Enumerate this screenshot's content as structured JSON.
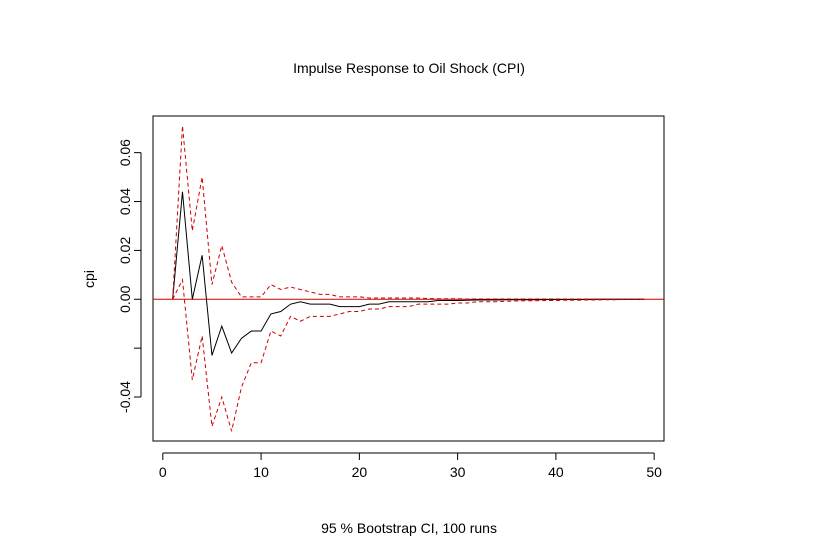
{
  "chart_data": {
    "type": "line",
    "title": "Impulse Response to Oil Shock (CPI)",
    "xlabel": "95 % Bootstrap CI,  100 runs",
    "ylabel": "cpi",
    "xlim": [
      -1,
      51
    ],
    "ylim": [
      -0.058,
      0.075
    ],
    "x_ticks": [
      "0",
      "10",
      "20",
      "30",
      "40",
      "50"
    ],
    "x_tick_values": [
      0,
      10,
      20,
      30,
      40,
      50
    ],
    "y_ticks": [
      "0.00",
      "0.02",
      "0.04",
      "0.06",
      "-0.04"
    ],
    "y_tick_values": [
      0.0,
      0.02,
      0.04,
      0.06,
      -0.04
    ],
    "y_minor_ticks": [
      -0.02
    ],
    "grid": false,
    "reference_line": {
      "y": 0,
      "color": "#cc0000"
    },
    "x": [
      1,
      2,
      3,
      4,
      5,
      6,
      7,
      8,
      9,
      10,
      11,
      12,
      13,
      14,
      15,
      16,
      17,
      18,
      19,
      20,
      21,
      22,
      23,
      24,
      25,
      26,
      27,
      28,
      29,
      30,
      31,
      32,
      33,
      34,
      35,
      36,
      37,
      38,
      39,
      40,
      41,
      42,
      43,
      44,
      45,
      46,
      47,
      48,
      49
    ],
    "series": [
      {
        "color": "#000000",
        "style": "solid",
        "values": [
          0,
          0.044,
          0,
          0.018,
          -0.023,
          -0.011,
          -0.022,
          -0.016,
          -0.013,
          -0.013,
          -0.006,
          -0.005,
          -0.002,
          -0.001,
          -0.002,
          -0.002,
          -0.002,
          -0.003,
          -0.003,
          -0.003,
          -0.002,
          -0.002,
          -0.001,
          -0.001,
          -0.001,
          -0.001,
          -0.001,
          -0.0005,
          -0.0005,
          -0.0005,
          -0.0004,
          -0.0003,
          -0.0003,
          -0.0003,
          -0.0002,
          -0.0002,
          -0.0002,
          -0.0002,
          -0.0001,
          -0.0001,
          -0.0001,
          -0.0001,
          -0.0001,
          0,
          0,
          0,
          0,
          0,
          0
        ]
      },
      {
        "color": "#cc0000",
        "style": "dashed",
        "values": [
          0,
          0.071,
          0.028,
          0.05,
          0.006,
          0.022,
          0.007,
          0.001,
          0.001,
          0.001,
          0.006,
          0.004,
          0.005,
          0.004,
          0.003,
          0.002,
          0.002,
          0.001,
          0.001,
          0.001,
          0.0005,
          0.0005,
          0.0005,
          0.0005,
          0.0005,
          0.0005,
          0.0003,
          0.0002,
          0.0002,
          0.0002,
          0.0001,
          0.0001,
          0.0001,
          0.0001,
          0.0001,
          0.0001,
          0.0001,
          0.0001,
          0.0001,
          0.0001,
          0.0001,
          0.0001,
          0.0001,
          0,
          0,
          0,
          0,
          0,
          0
        ]
      },
      {
        "color": "#cc0000",
        "style": "dashed",
        "values": [
          0,
          0.008,
          -0.033,
          -0.015,
          -0.052,
          -0.04,
          -0.054,
          -0.036,
          -0.026,
          -0.026,
          -0.013,
          -0.015,
          -0.007,
          -0.009,
          -0.007,
          -0.007,
          -0.007,
          -0.006,
          -0.005,
          -0.005,
          -0.004,
          -0.004,
          -0.003,
          -0.003,
          -0.003,
          -0.002,
          -0.002,
          -0.002,
          -0.002,
          -0.0015,
          -0.0015,
          -0.001,
          -0.001,
          -0.001,
          -0.0008,
          -0.0007,
          -0.0006,
          -0.0006,
          -0.0005,
          -0.0005,
          -0.0004,
          -0.0004,
          -0.0003,
          -0.0003,
          -0.0002,
          -0.0002,
          -0.0001,
          -0.0001,
          0
        ]
      }
    ]
  }
}
